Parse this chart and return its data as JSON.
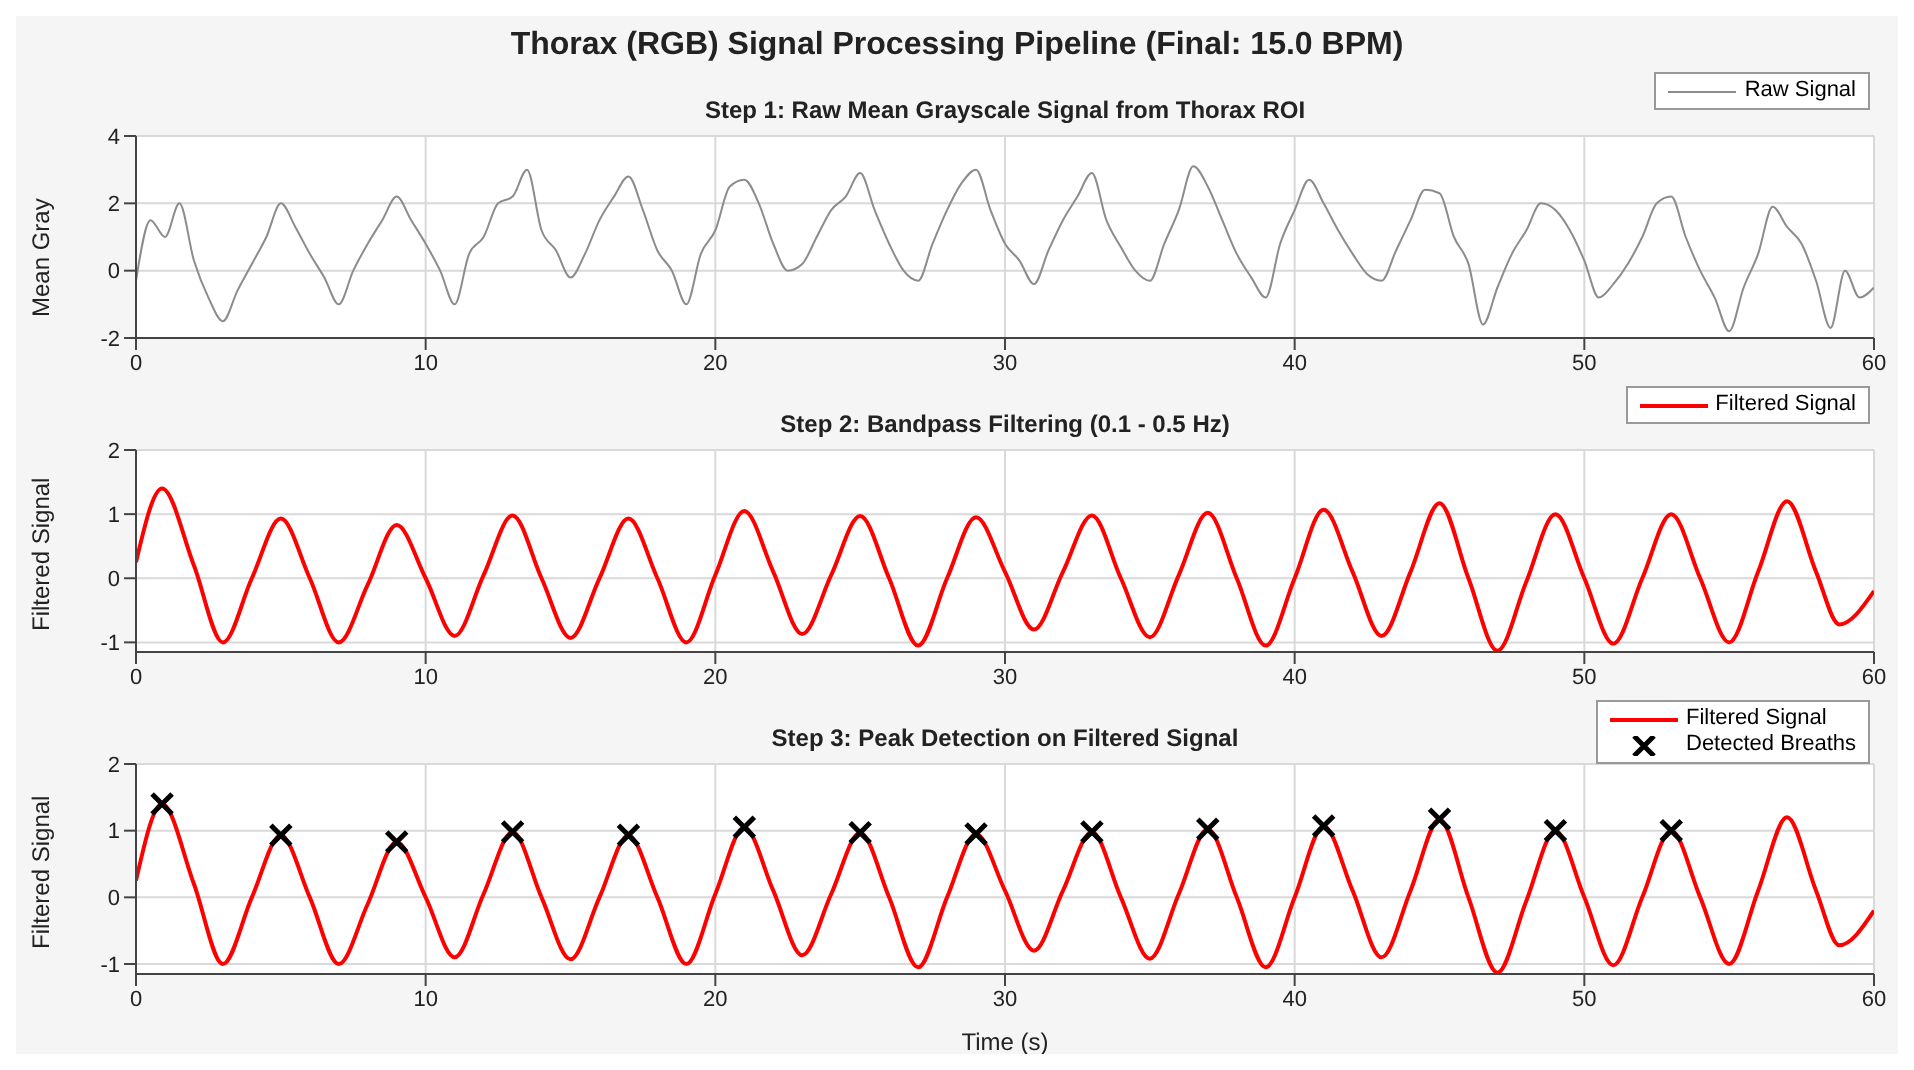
{
  "chart_data": [
    {
      "type": "line",
      "annotations": [
        "Thorax (RGB) Signal Processing Pipeline (Final: 15.0 BPM)"
      ],
      "title": "Step 1: Raw Mean Grayscale Signal from Thorax ROI",
      "ylabel": "Mean Gray",
      "xlim": [
        0,
        60
      ],
      "xticks": [
        0,
        10,
        20,
        30,
        40,
        50,
        60
      ],
      "ylim": [
        -2,
        4
      ],
      "yticks": [
        -2,
        0,
        2,
        4
      ],
      "grid": true,
      "legend": "top right",
      "series": [
        {
          "name": "Raw Signal",
          "color": "#8c8c8c",
          "marker": "none",
          "line_style": "solid",
          "x": [
            0,
            0.5,
            1,
            1.5,
            2,
            2.5,
            3,
            3.5,
            4,
            4.5,
            5,
            5.5,
            6,
            6.5,
            7,
            7.5,
            8,
            8.5,
            9,
            9.5,
            10,
            10.5,
            11,
            11.5,
            12,
            12.5,
            13,
            13.5,
            14,
            14.5,
            15,
            15.5,
            16,
            16.5,
            17,
            17.5,
            18,
            18.5,
            19,
            19.5,
            20,
            20.5,
            21,
            21.5,
            22,
            22.5,
            23,
            23.5,
            24,
            24.5,
            25,
            25.5,
            26,
            26.5,
            27,
            27.5,
            28,
            28.5,
            29,
            29.5,
            30,
            30.5,
            31,
            31.5,
            32,
            32.5,
            33,
            33.5,
            34,
            34.5,
            35,
            35.5,
            36,
            36.5,
            37,
            37.5,
            38,
            38.5,
            39,
            39.5,
            40,
            40.5,
            41,
            41.5,
            42,
            42.5,
            43,
            43.5,
            44,
            44.5,
            45,
            45.5,
            46,
            46.5,
            47,
            47.5,
            48,
            48.5,
            49,
            49.5,
            50,
            50.5,
            51,
            51.5,
            52,
            52.5,
            53,
            53.5,
            54,
            54.5,
            55,
            55.5,
            56,
            56.5,
            57,
            57.5,
            58,
            58.5,
            59,
            59.5,
            60
          ],
          "values": [
            -0.3,
            1.5,
            1.0,
            2.0,
            0.3,
            -0.8,
            -1.5,
            -0.6,
            0.2,
            1.0,
            2.0,
            1.3,
            0.5,
            -0.2,
            -1.0,
            0.0,
            0.8,
            1.5,
            2.2,
            1.5,
            0.8,
            0.0,
            -1.0,
            0.5,
            1.0,
            2.0,
            2.2,
            3.0,
            1.2,
            0.6,
            -0.2,
            0.5,
            1.5,
            2.2,
            2.8,
            1.8,
            0.6,
            0.0,
            -1.0,
            0.5,
            1.2,
            2.5,
            2.7,
            2.0,
            0.8,
            0.0,
            0.2,
            1.0,
            1.8,
            2.2,
            2.9,
            1.8,
            0.8,
            0.0,
            -0.3,
            0.8,
            1.8,
            2.6,
            3.0,
            1.8,
            0.8,
            0.3,
            -0.4,
            0.6,
            1.5,
            2.2,
            2.9,
            1.5,
            0.7,
            0.0,
            -0.3,
            0.8,
            1.8,
            3.1,
            2.5,
            1.5,
            0.5,
            -0.2,
            -0.8,
            0.8,
            1.8,
            2.7,
            2.0,
            1.2,
            0.5,
            -0.1,
            -0.3,
            0.6,
            1.5,
            2.4,
            2.3,
            1.0,
            0.2,
            -1.6,
            -0.5,
            0.5,
            1.2,
            2.0,
            1.8,
            1.2,
            0.3,
            -0.8,
            -0.4,
            0.2,
            1.0,
            2.0,
            2.2,
            1.0,
            0.0,
            -0.8,
            -1.8,
            -0.5,
            0.5,
            1.9,
            1.3,
            0.8,
            -0.3,
            -1.7,
            0.0,
            -0.8,
            -0.5
          ]
        }
      ]
    },
    {
      "type": "line",
      "title": "Step 2: Bandpass Filtering (0.1 - 0.5 Hz)",
      "ylabel": "Filtered Signal",
      "xlim": [
        0,
        60
      ],
      "xticks": [
        0,
        10,
        20,
        30,
        40,
        50,
        60
      ],
      "ylim": [
        -1.15,
        2
      ],
      "yticks": [
        -1,
        0,
        1,
        2
      ],
      "grid": true,
      "legend": "top right",
      "series": [
        {
          "name": "Filtered Signal",
          "color": "#ff0000",
          "marker": "none",
          "line_style": "solid",
          "x": [
            0,
            0.9,
            2,
            3,
            4,
            5,
            6,
            7,
            8,
            9,
            10,
            11,
            12,
            13,
            14,
            15,
            16,
            17,
            18,
            19,
            20,
            21,
            22,
            23,
            24,
            25,
            26,
            27,
            28,
            29,
            30,
            31,
            32,
            33,
            34,
            35,
            36,
            37,
            38,
            39,
            40,
            41,
            42,
            43,
            44,
            45,
            46,
            47,
            48,
            49,
            50,
            51,
            52,
            53,
            54,
            55,
            56,
            57,
            58,
            58.8,
            60
          ],
          "values": [
            0.25,
            1.4,
            0.2,
            -1.0,
            0.0,
            0.93,
            0.0,
            -1.0,
            -0.1,
            0.83,
            0.0,
            -0.9,
            0.05,
            0.98,
            0.0,
            -0.93,
            0.0,
            0.93,
            0.0,
            -1.0,
            0.05,
            1.05,
            0.1,
            -0.87,
            0.05,
            0.97,
            0.0,
            -1.05,
            0.0,
            0.95,
            0.1,
            -0.8,
            0.1,
            0.98,
            0.0,
            -0.92,
            0.05,
            1.02,
            0.0,
            -1.05,
            0.0,
            1.07,
            0.1,
            -0.9,
            0.1,
            1.17,
            0.0,
            -1.13,
            -0.05,
            1.0,
            0.0,
            -1.02,
            0.0,
            1.0,
            0.0,
            -1.0,
            0.1,
            1.2,
            0.1,
            -0.72,
            -0.2
          ]
        }
      ]
    },
    {
      "type": "line",
      "title": "Step 3: Peak Detection on Filtered Signal",
      "xlabel": "Time (s)",
      "ylabel": "Filtered Signal",
      "xlim": [
        0,
        60
      ],
      "xticks": [
        0,
        10,
        20,
        30,
        40,
        50,
        60
      ],
      "ylim": [
        -1.15,
        2
      ],
      "yticks": [
        -1,
        0,
        1,
        2
      ],
      "grid": true,
      "legend": "top right",
      "series": [
        {
          "name": "Filtered Signal",
          "color": "#ff0000",
          "marker": "none",
          "line_style": "solid",
          "x": [
            0,
            0.9,
            2,
            3,
            4,
            5,
            6,
            7,
            8,
            9,
            10,
            11,
            12,
            13,
            14,
            15,
            16,
            17,
            18,
            19,
            20,
            21,
            22,
            23,
            24,
            25,
            26,
            27,
            28,
            29,
            30,
            31,
            32,
            33,
            34,
            35,
            36,
            37,
            38,
            39,
            40,
            41,
            42,
            43,
            44,
            45,
            46,
            47,
            48,
            49,
            50,
            51,
            52,
            53,
            54,
            55,
            56,
            57,
            58,
            58.8,
            60
          ],
          "values": [
            0.25,
            1.4,
            0.2,
            -1.0,
            0.0,
            0.93,
            0.0,
            -1.0,
            -0.1,
            0.83,
            0.0,
            -0.9,
            0.05,
            0.98,
            0.0,
            -0.93,
            0.0,
            0.93,
            0.0,
            -1.0,
            0.05,
            1.05,
            0.1,
            -0.87,
            0.05,
            0.97,
            0.0,
            -1.05,
            0.0,
            0.95,
            0.1,
            -0.8,
            0.1,
            0.98,
            0.0,
            -0.92,
            0.05,
            1.02,
            0.0,
            -1.05,
            0.0,
            1.07,
            0.1,
            -0.9,
            0.1,
            1.17,
            0.0,
            -1.13,
            -0.05,
            1.0,
            0.0,
            -1.02,
            0.0,
            1.0,
            0.0,
            -1.0,
            0.1,
            1.2,
            0.1,
            -0.72,
            -0.2
          ]
        },
        {
          "name": "Detected Breaths",
          "type": "scatter",
          "color": "#000000",
          "marker": "cross",
          "x": [
            0.9,
            5,
            9,
            13,
            17,
            21,
            25,
            29,
            33,
            37,
            41,
            45,
            49,
            53
          ],
          "values": [
            1.4,
            0.93,
            0.83,
            0.98,
            0.93,
            1.05,
            0.97,
            0.95,
            0.98,
            1.02,
            1.07,
            1.17,
            1.0,
            1.0
          ]
        }
      ]
    }
  ]
}
